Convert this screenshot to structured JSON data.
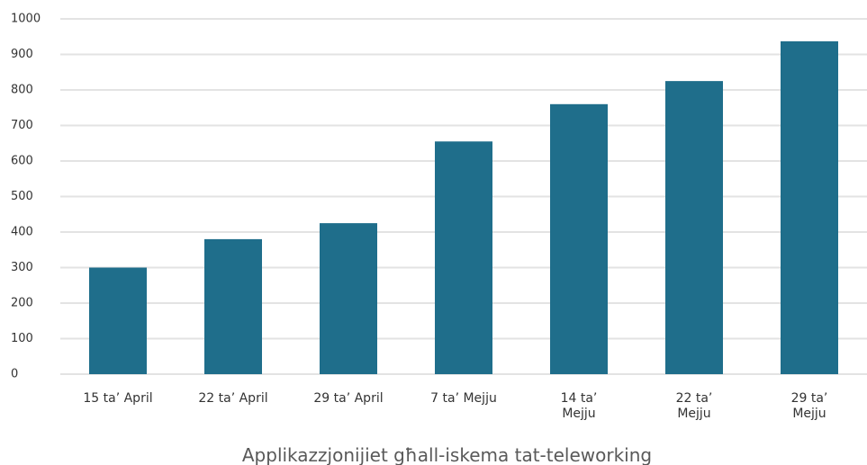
{
  "chart_data": {
    "type": "bar",
    "title": "Applikazzjonijiet għall-iskema tat-teleworking",
    "categories": [
      "15 ta’ April",
      "22 ta’ April",
      "29 ta’ April",
      "7 ta’ Mejju",
      "14 ta’ Mejju",
      "22 ta’ Mejju",
      "29 ta’ Mejju"
    ],
    "values": [
      300,
      380,
      425,
      655,
      760,
      825,
      937
    ],
    "color": "#1f6e8b",
    "ylim": [
      0,
      1000
    ],
    "yticks": [
      0,
      100,
      200,
      300,
      400,
      500,
      600,
      700,
      800,
      900,
      1000
    ],
    "grid": true
  }
}
